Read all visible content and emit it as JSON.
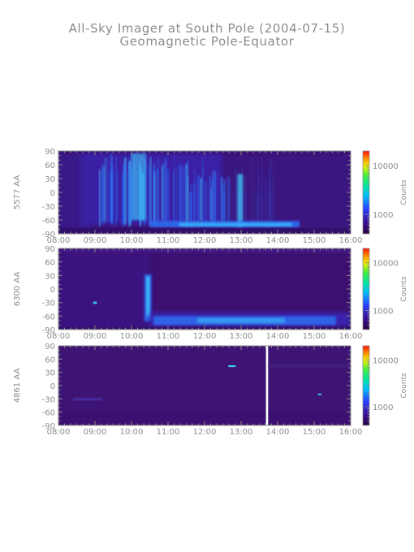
{
  "header": {
    "title": "All-Sky Imager at South Pole (2004-07-15)",
    "subtitle": "Geomagnetic Pole-Equator"
  },
  "chart_data": [
    {
      "type": "heatmap",
      "ylabel": "5577 AA",
      "x_ticks": [
        "08:00",
        "09:00",
        "10:00",
        "11:00",
        "12:00",
        "13:00",
        "14:00",
        "15:00",
        "16:00"
      ],
      "xlim": [
        "08:00",
        "16:00"
      ],
      "y_ticks": [
        90,
        60,
        30,
        0,
        -30,
        -60,
        -90
      ],
      "ylim": [
        -90,
        90
      ],
      "colorbar": {
        "label": "Counts",
        "ticks": [
          10000,
          1000
        ],
        "scale": "log",
        "range": [
          400,
          20000
        ]
      },
      "colors": {
        "background": "#3c1070",
        "low": "#3a28b8",
        "mid": "#2e6cf0",
        "high": "#40d8ff"
      },
      "features": [
        "discrete auroral arcs 09:00–12:30 across 80 to -70",
        "bright band near -70 from 10:30 to 14:30",
        "bright spikes near 10:20 and 13:00"
      ]
    },
    {
      "type": "heatmap",
      "ylabel": "6300 AA",
      "x_ticks": [
        "08:00",
        "09:00",
        "10:00",
        "11:00",
        "12:00",
        "13:00",
        "14:00",
        "15:00",
        "16:00"
      ],
      "xlim": [
        "08:00",
        "16:00"
      ],
      "y_ticks": [
        90,
        60,
        30,
        0,
        -30,
        -60,
        -90
      ],
      "ylim": [
        -90,
        90
      ],
      "colorbar": {
        "label": "Counts",
        "ticks": [
          10000,
          1000
        ],
        "scale": "log",
        "range": [
          400,
          20000
        ]
      },
      "colors": {
        "background": "#3c1070",
        "low": "#3a28b8",
        "mid": "#2e6cf0",
        "high": "#40d8ff"
      },
      "features": [
        "vertical bright streak near 10:30 from 30 to -70",
        "broad band around -60 to -80 from 10:30 to 16:00"
      ]
    },
    {
      "type": "heatmap",
      "ylabel": "4861 AA",
      "x_ticks": [
        "08:00",
        "09:00",
        "10:00",
        "11:00",
        "12:00",
        "13:00",
        "14:00",
        "15:00",
        "16:00"
      ],
      "xlim": [
        "08:00",
        "16:00"
      ],
      "y_ticks": [
        90,
        60,
        30,
        0,
        -30,
        -60,
        -90
      ],
      "ylim": [
        -90,
        90
      ],
      "colorbar": {
        "label": "Counts",
        "ticks": [
          10000,
          1000
        ],
        "scale": "log",
        "range": [
          400,
          20000
        ]
      },
      "colors": {
        "background": "#3c1070",
        "low": "#3a28b8",
        "mid": "#2e6cf0",
        "high": "#40d8ff"
      },
      "features": [
        "mostly dark",
        "vertical white gap near 13:40",
        "small bright spots"
      ]
    }
  ]
}
